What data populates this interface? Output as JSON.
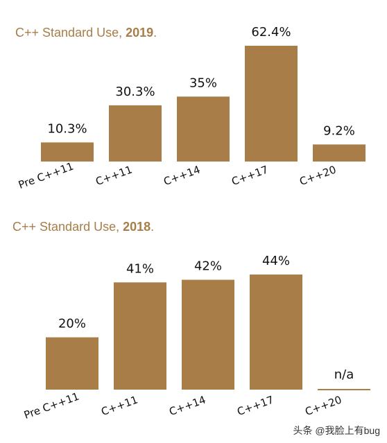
{
  "bar_color": "#a87d48",
  "title_color": "#a87d48",
  "chart_data": [
    {
      "type": "bar",
      "title_prefix": "C++ Standard Use, ",
      "title_year": "2019",
      "title_suffix": ".",
      "categories": [
        "Pre C++11",
        "C++11",
        "C++14",
        "C++17",
        "C++20"
      ],
      "values": [
        10.3,
        30.3,
        35,
        62.4,
        9.2
      ],
      "value_labels": [
        "10.3%",
        "30.3%",
        "35%",
        "62.4%",
        "9.2%"
      ],
      "ylim": [
        0,
        62.4
      ]
    },
    {
      "type": "bar",
      "title_prefix": "C++ Standard Use, ",
      "title_year": "2018",
      "title_suffix": ".",
      "categories": [
        "Pre C++11",
        "C++11",
        "C++14",
        "C++17",
        "C++20"
      ],
      "values": [
        20,
        41,
        42,
        44,
        null
      ],
      "value_labels": [
        "20%",
        "41%",
        "42%",
        "44%",
        "n/a"
      ],
      "ylim": [
        0,
        44
      ]
    }
  ],
  "watermark": "头条 @我脸上有bug"
}
